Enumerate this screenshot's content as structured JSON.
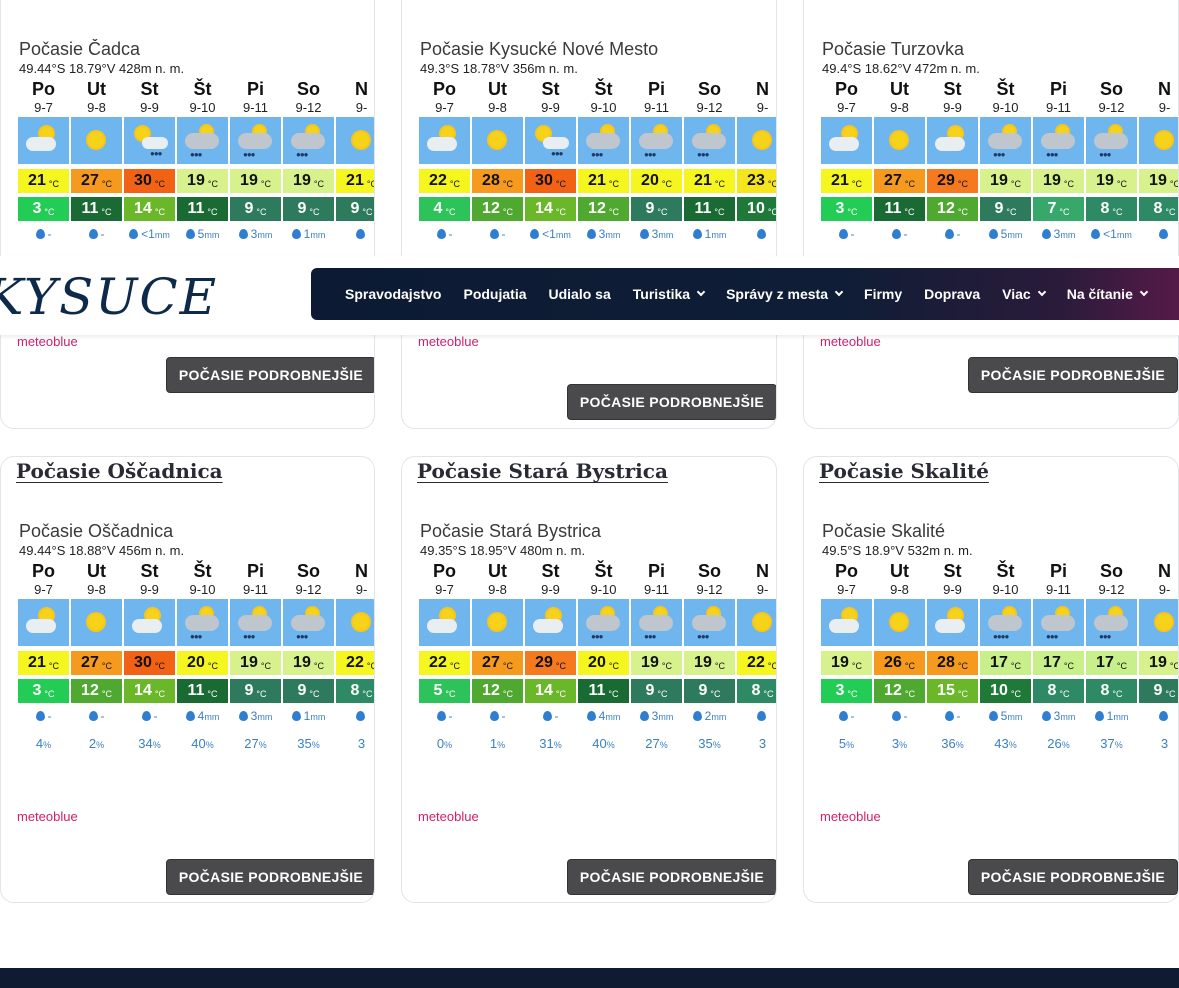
{
  "nav": {
    "logo": "KYSUCE",
    "items": [
      {
        "label": "Spravodajstvo",
        "dropdown": false
      },
      {
        "label": "Podujatia",
        "dropdown": false
      },
      {
        "label": "Udialo sa",
        "dropdown": false
      },
      {
        "label": "Turistika",
        "dropdown": true
      },
      {
        "label": "Správy z mesta",
        "dropdown": true
      },
      {
        "label": "Firmy",
        "dropdown": false
      },
      {
        "label": "Doprava",
        "dropdown": false
      },
      {
        "label": "Viac",
        "dropdown": true
      },
      {
        "label": "Na čítanie",
        "dropdown": true
      }
    ]
  },
  "button_label": "POČASIE PODROBNEJŠIE",
  "attribution": "meteoblue",
  "unit_c": "°C",
  "unit_mm": "mm",
  "unit_pct": "%",
  "cards": [
    {
      "title": "",
      "city": "Počasie Čadca",
      "coords": "49.44°S 18.79°V 428m n. m.",
      "days": [
        "Po",
        "Ut",
        "St",
        "Št",
        "Pi",
        "So",
        "N"
      ],
      "dates": [
        "9-7",
        "9-8",
        "9-9",
        "9-10",
        "9-11",
        "9-12",
        "9-"
      ],
      "icons": [
        "partly-cloudy",
        "sunny",
        "sun-rain",
        "cloud-rain",
        "cloud-rain",
        "cloud-rain",
        "sunny"
      ],
      "tmax": [
        "21",
        "27",
        "30",
        "19",
        "19",
        "19",
        "21"
      ],
      "tmin": [
        "3",
        "11",
        "14",
        "11",
        "9",
        "9",
        "9"
      ],
      "prec": [
        "-",
        "-",
        "<1",
        "5",
        "3",
        "1",
        ""
      ],
      "prob": []
    },
    {
      "title": "",
      "city": "Počasie Kysucké Nové Mesto",
      "coords": "49.3°S 18.78°V 356m n. m.",
      "days": [
        "Po",
        "Ut",
        "St",
        "Št",
        "Pi",
        "So",
        "N"
      ],
      "dates": [
        "9-7",
        "9-8",
        "9-9",
        "9-10",
        "9-11",
        "9-12",
        "9-"
      ],
      "icons": [
        "partly-cloudy",
        "sunny",
        "sun-rain",
        "cloud-rain",
        "cloud-rain",
        "cloud-rain",
        "sunny"
      ],
      "tmax": [
        "22",
        "28",
        "30",
        "21",
        "20",
        "21",
        "23"
      ],
      "tmin": [
        "4",
        "12",
        "14",
        "12",
        "9",
        "11",
        "10"
      ],
      "prec": [
        "-",
        "-",
        "<1",
        "3",
        "3",
        "1",
        ""
      ],
      "prob": []
    },
    {
      "title": "",
      "city": "Počasie Turzovka",
      "coords": "49.4°S 18.62°V 472m n. m.",
      "days": [
        "Po",
        "Ut",
        "St",
        "Št",
        "Pi",
        "So",
        "N"
      ],
      "dates": [
        "9-7",
        "9-8",
        "9-9",
        "9-10",
        "9-11",
        "9-12",
        "9-"
      ],
      "icons": [
        "partly-cloudy",
        "sunny",
        "partly-cloudy",
        "cloud-rain",
        "cloud-rain",
        "cloud-rain",
        "sunny"
      ],
      "tmax": [
        "21",
        "27",
        "29",
        "19",
        "19",
        "19",
        "19"
      ],
      "tmin": [
        "3",
        "11",
        "12",
        "9",
        "7",
        "8",
        "8"
      ],
      "prec": [
        "-",
        "-",
        "-",
        "5",
        "3",
        "<1",
        ""
      ],
      "prob": []
    },
    {
      "title": "Počasie Oščadnica",
      "city": "Počasie Oščadnica",
      "coords": "49.44°S 18.88°V 456m n. m.",
      "days": [
        "Po",
        "Ut",
        "St",
        "Št",
        "Pi",
        "So",
        "N"
      ],
      "dates": [
        "9-7",
        "9-8",
        "9-9",
        "9-10",
        "9-11",
        "9-12",
        "9-"
      ],
      "icons": [
        "partly-cloudy",
        "sunny",
        "partly-cloudy",
        "cloud-rain",
        "cloud-rain",
        "cloud-rain",
        "sunny"
      ],
      "tmax": [
        "21",
        "27",
        "30",
        "20",
        "19",
        "19",
        "22"
      ],
      "tmin": [
        "3",
        "12",
        "14",
        "11",
        "9",
        "9",
        "8"
      ],
      "prec": [
        "-",
        "-",
        "-",
        "4",
        "3",
        "1",
        ""
      ],
      "prob": [
        "4",
        "2",
        "34",
        "40",
        "27",
        "35",
        "3"
      ]
    },
    {
      "title": "Počasie Stará Bystrica",
      "city": "Počasie Stará Bystrica",
      "coords": "49.35°S 18.95°V 480m n. m.",
      "days": [
        "Po",
        "Ut",
        "St",
        "Št",
        "Pi",
        "So",
        "N"
      ],
      "dates": [
        "9-7",
        "9-8",
        "9-9",
        "9-10",
        "9-11",
        "9-12",
        "9-"
      ],
      "icons": [
        "partly-cloudy",
        "sunny",
        "partly-cloudy",
        "cloud-rain",
        "cloud-rain",
        "cloud-rain",
        "sunny"
      ],
      "tmax": [
        "22",
        "27",
        "29",
        "20",
        "19",
        "19",
        "22"
      ],
      "tmin": [
        "5",
        "12",
        "14",
        "11",
        "9",
        "9",
        "8"
      ],
      "prec": [
        "-",
        "-",
        "-",
        "4",
        "3",
        "2",
        ""
      ],
      "prob": [
        "0",
        "1",
        "31",
        "40",
        "27",
        "35",
        "3"
      ]
    },
    {
      "title": "Počasie Skalité",
      "city": "Počasie Skalité",
      "coords": "49.5°S 18.9°V 532m n. m.",
      "days": [
        "Po",
        "Ut",
        "St",
        "Št",
        "Pi",
        "So",
        "N"
      ],
      "dates": [
        "9-7",
        "9-8",
        "9-9",
        "9-10",
        "9-11",
        "9-12",
        "9-"
      ],
      "icons": [
        "partly-cloudy",
        "sunny",
        "partly-cloudy",
        "cloud-heavy-rain",
        "cloud-rain",
        "cloud-rain",
        "sunny"
      ],
      "tmax": [
        "19",
        "26",
        "28",
        "17",
        "17",
        "17",
        "19"
      ],
      "tmin": [
        "3",
        "12",
        "15",
        "10",
        "8",
        "8",
        "9"
      ],
      "prec": [
        "-",
        "-",
        "-",
        "5",
        "3",
        "1",
        ""
      ],
      "prob": [
        "5",
        "3",
        "36",
        "43",
        "26",
        "37",
        "3"
      ]
    }
  ],
  "temp_colors": {
    "17": "#c9ef8a",
    "19": "#d7f28c",
    "20": "#f5f51f",
    "21": "#f5f51f",
    "22": "#f5f51f",
    "23": "#f5e51f",
    "26": "#f59a1f",
    "27": "#f59a1f",
    "28": "#f59a1f",
    "29": "#f57a1f",
    "30": "#f26214",
    "3": "#22cc55",
    "4": "#2ec35a",
    "5": "#2ec35a",
    "7": "#35a86a",
    "8": "#2e8a64",
    "9": "#2e7a5c",
    "10": "#1f7a3a",
    "11": "#1a6a34",
    "12": "#4fa830",
    "14": "#6ab82a",
    "15": "#6ab82a"
  }
}
